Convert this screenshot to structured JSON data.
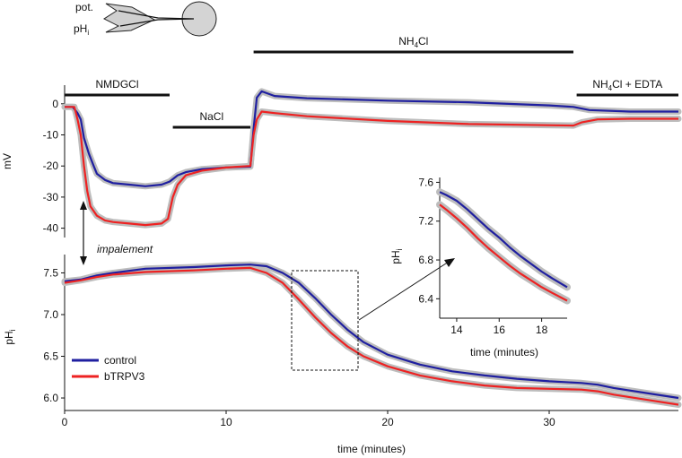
{
  "colors": {
    "control": "#1f1fa0",
    "bTRPV3": "#ee2222",
    "error_band": "#bdbdbd",
    "axis": "#111111"
  },
  "schematic": {
    "labels": [
      "pot.",
      "pH",
      "i"
    ]
  },
  "conditions": [
    {
      "label": "NMDGCl",
      "start": 0,
      "end": 6.5
    },
    {
      "label": "NaCl",
      "start": 6.7,
      "end": 11.5
    },
    {
      "label": "NH",
      "sub": "4",
      "rest": "Cl",
      "start": 11.7,
      "end": 31.5
    },
    {
      "label": "NH",
      "sub": "4",
      "rest": "Cl + EDTA",
      "start": 31.7,
      "end": 38
    }
  ],
  "annotations": {
    "impalement": "impalement"
  },
  "chart_data": [
    {
      "type": "line",
      "panel": "membrane-potential",
      "xlabel": "",
      "ylabel": "mV",
      "xlim": [
        0,
        38
      ],
      "ylim": [
        -43,
        6
      ],
      "yticks": [
        0,
        -10,
        -20,
        -30,
        -40
      ],
      "series": [
        {
          "name": "control",
          "points": [
            [
              0,
              -1
            ],
            [
              0.5,
              -1
            ],
            [
              0.8,
              -3
            ],
            [
              1,
              -5
            ],
            [
              1.2,
              -11
            ],
            [
              1.5,
              -16
            ],
            [
              1.8,
              -20
            ],
            [
              2,
              -22.5
            ],
            [
              2.5,
              -24.5
            ],
            [
              3,
              -25.5
            ],
            [
              4,
              -26
            ],
            [
              5,
              -26.5
            ],
            [
              6,
              -26
            ],
            [
              6.5,
              -25
            ],
            [
              7,
              -23
            ],
            [
              7.5,
              -22
            ],
            [
              8.5,
              -21
            ],
            [
              10,
              -20.5
            ],
            [
              11.5,
              -20.2
            ],
            [
              11.7,
              -8
            ],
            [
              11.9,
              2
            ],
            [
              12.2,
              4
            ],
            [
              13,
              2.5
            ],
            [
              15,
              1.8
            ],
            [
              20,
              1
            ],
            [
              25,
              0.5
            ],
            [
              30,
              -0.5
            ],
            [
              31.5,
              -1
            ],
            [
              32.5,
              -2
            ],
            [
              35,
              -2.5
            ],
            [
              38,
              -2.5
            ]
          ]
        },
        {
          "name": "bTRPV3",
          "points": [
            [
              0,
              -1
            ],
            [
              0.6,
              -1
            ],
            [
              0.8,
              -5
            ],
            [
              1,
              -10
            ],
            [
              1.2,
              -20
            ],
            [
              1.4,
              -28
            ],
            [
              1.6,
              -33
            ],
            [
              2,
              -36
            ],
            [
              2.5,
              -37.5
            ],
            [
              3,
              -38
            ],
            [
              4,
              -38.5
            ],
            [
              5,
              -39
            ],
            [
              6,
              -38.5
            ],
            [
              6.4,
              -37
            ],
            [
              6.7,
              -30
            ],
            [
              7,
              -26
            ],
            [
              7.5,
              -23
            ],
            [
              8.5,
              -21.5
            ],
            [
              10,
              -20.5
            ],
            [
              11.5,
              -20
            ],
            [
              11.7,
              -10
            ],
            [
              11.9,
              -5
            ],
            [
              12.2,
              -2.5
            ],
            [
              13,
              -3
            ],
            [
              15,
              -4
            ],
            [
              20,
              -5.5
            ],
            [
              25,
              -6.5
            ],
            [
              31.5,
              -7
            ],
            [
              32,
              -6
            ],
            [
              33,
              -5
            ],
            [
              35,
              -4.8
            ],
            [
              38,
              -4.8
            ]
          ]
        }
      ]
    },
    {
      "type": "line",
      "panel": "intracellular-pH",
      "xlabel": "time (minutes)",
      "ylabel": "pH",
      "ylabel_sub": "i",
      "xlim": [
        0,
        38
      ],
      "ylim": [
        5.85,
        7.72
      ],
      "xticks": [
        0,
        10,
        20,
        30
      ],
      "yticks": [
        7.5,
        7.0,
        6.5,
        6.0
      ],
      "series": [
        {
          "name": "control",
          "points": [
            [
              0,
              7.4
            ],
            [
              1,
              7.42
            ],
            [
              2,
              7.47
            ],
            [
              3,
              7.5
            ],
            [
              5,
              7.55
            ],
            [
              8,
              7.57
            ],
            [
              10,
              7.59
            ],
            [
              11.5,
              7.6
            ],
            [
              12.5,
              7.58
            ],
            [
              13.5,
              7.5
            ],
            [
              14.5,
              7.38
            ],
            [
              15.5,
              7.2
            ],
            [
              16.5,
              7.0
            ],
            [
              17.5,
              6.82
            ],
            [
              18.5,
              6.67
            ],
            [
              20,
              6.52
            ],
            [
              22,
              6.4
            ],
            [
              24,
              6.32
            ],
            [
              26,
              6.27
            ],
            [
              28,
              6.23
            ],
            [
              30,
              6.2
            ],
            [
              32,
              6.18
            ],
            [
              33,
              6.16
            ],
            [
              34,
              6.12
            ],
            [
              36,
              6.06
            ],
            [
              38,
              6.0
            ]
          ]
        },
        {
          "name": "bTRPV3",
          "points": [
            [
              0,
              7.38
            ],
            [
              1,
              7.41
            ],
            [
              2,
              7.45
            ],
            [
              3,
              7.48
            ],
            [
              5,
              7.51
            ],
            [
              8,
              7.53
            ],
            [
              10,
              7.55
            ],
            [
              11.5,
              7.56
            ],
            [
              12.5,
              7.5
            ],
            [
              13.5,
              7.38
            ],
            [
              14.5,
              7.18
            ],
            [
              15.5,
              6.97
            ],
            [
              16.5,
              6.78
            ],
            [
              17.5,
              6.62
            ],
            [
              18.5,
              6.5
            ],
            [
              20,
              6.38
            ],
            [
              22,
              6.27
            ],
            [
              24,
              6.2
            ],
            [
              26,
              6.15
            ],
            [
              28,
              6.12
            ],
            [
              30,
              6.11
            ],
            [
              32,
              6.1
            ],
            [
              33,
              6.08
            ],
            [
              34,
              6.04
            ],
            [
              36,
              5.98
            ],
            [
              38,
              5.92
            ]
          ]
        }
      ],
      "legend": [
        "control",
        "bTRPV3"
      ],
      "legend_position": "bottom-left"
    },
    {
      "type": "line",
      "panel": "inset-zoom",
      "xlabel": "time (minutes)",
      "ylabel": "pH",
      "ylabel_sub": "i",
      "xlim": [
        13.2,
        19.2
      ],
      "ylim": [
        6.2,
        7.65
      ],
      "xticks": [
        14,
        16,
        18
      ],
      "yticks": [
        7.6,
        7.2,
        6.8,
        6.4
      ],
      "series": [
        {
          "name": "control",
          "points": [
            [
              13.2,
              7.5
            ],
            [
              13.5,
              7.47
            ],
            [
              14,
              7.41
            ],
            [
              14.5,
              7.32
            ],
            [
              15,
              7.22
            ],
            [
              15.5,
              7.12
            ],
            [
              16,
              7.03
            ],
            [
              16.5,
              6.93
            ],
            [
              17,
              6.84
            ],
            [
              17.5,
              6.76
            ],
            [
              18,
              6.68
            ],
            [
              18.5,
              6.61
            ],
            [
              19.2,
              6.52
            ]
          ]
        },
        {
          "name": "bTRPV3",
          "points": [
            [
              13.2,
              7.37
            ],
            [
              13.5,
              7.32
            ],
            [
              14,
              7.23
            ],
            [
              14.5,
              7.13
            ],
            [
              15,
              7.02
            ],
            [
              15.5,
              6.92
            ],
            [
              16,
              6.83
            ],
            [
              16.5,
              6.74
            ],
            [
              17,
              6.66
            ],
            [
              17.5,
              6.59
            ],
            [
              18,
              6.52
            ],
            [
              18.5,
              6.46
            ],
            [
              19.2,
              6.38
            ]
          ]
        }
      ]
    }
  ]
}
